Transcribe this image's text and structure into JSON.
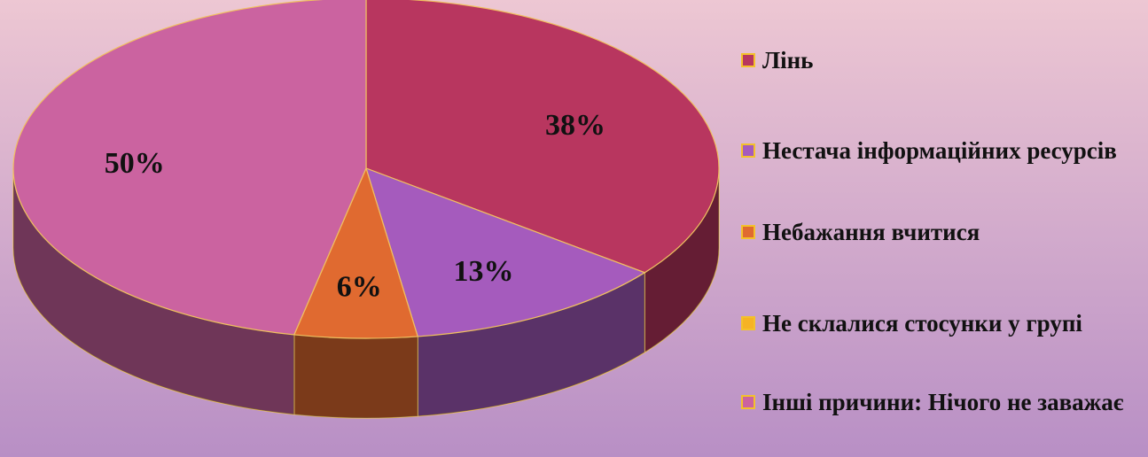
{
  "chart_data": {
    "type": "pie",
    "categories": [
      "Лінь",
      "Нестача інформаційних ресурсів",
      "Небажання вчитися",
      "Не склалися стосунки у групі",
      "Інші причини: Нічого не заважає"
    ],
    "values": [
      38,
      13,
      6,
      0,
      50
    ],
    "value_labels": [
      "38%",
      "13%",
      "6%",
      null,
      "50%"
    ],
    "colors": [
      "#b8365f",
      "#a55bbd",
      "#e06a30",
      "#f6b324",
      "#cb63a0"
    ],
    "legend": "right"
  }
}
